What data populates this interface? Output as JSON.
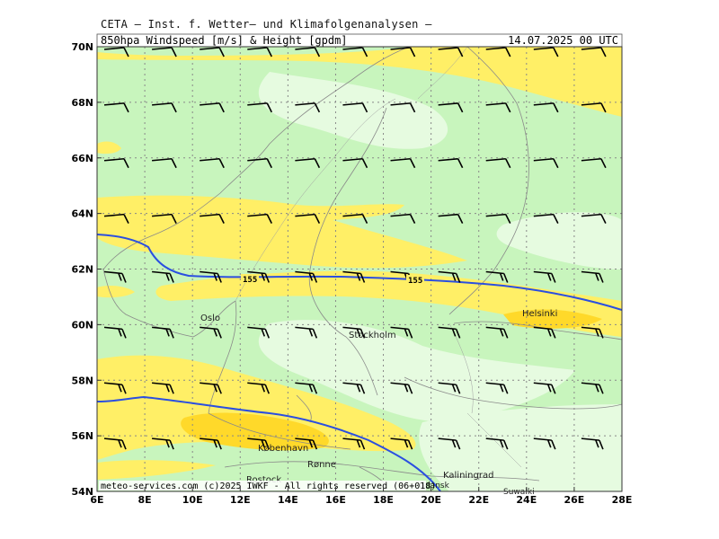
{
  "header": {
    "line1": "CETA – Inst. f. Wetter– und Klimafolgenanalysen –",
    "product": "850hpa Windspeed [m/s] & Height [gpdm]",
    "valid_time": "14.07.2025 00 UTC"
  },
  "axes": {
    "lat_labels": [
      "70N",
      "68N",
      "66N",
      "64N",
      "62N",
      "60N",
      "58N",
      "56N",
      "54N"
    ],
    "lon_labels": [
      "6E",
      "8E",
      "10E",
      "12E",
      "14E",
      "16E",
      "18E",
      "20E",
      "22E",
      "24E",
      "26E",
      "28E"
    ]
  },
  "contours": [
    {
      "label": "155",
      "color": "#2b4fe0"
    }
  ],
  "places": [
    "Oslo",
    "Stockholm",
    "Helsinki",
    "København",
    "Rønne",
    "Rostock",
    "Kaliningrad",
    "Gdansk",
    "Suwałki"
  ],
  "colors": {
    "light_green": "#e6fbe0",
    "green": "#c8f5bd",
    "yellow": "#ffef66",
    "orange": "#ffd92a",
    "contour": "#2b4fe0",
    "coast": "#8a8a8a",
    "grid": "#888888"
  },
  "footer": {
    "copyright": "meteo-services.com (c)2025 IWKF - All rights reserved (06+018)"
  }
}
